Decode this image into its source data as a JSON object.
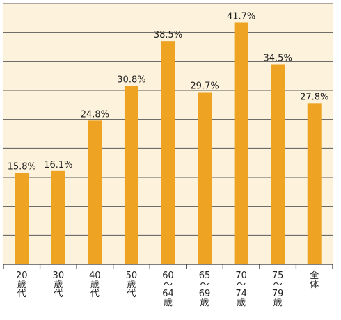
{
  "chart_data": {
    "type": "bar",
    "title": "",
    "xlabel": "",
    "ylabel": "",
    "ylim": [
      0,
      45
    ],
    "gridlines": [
      5,
      10,
      15,
      20,
      25,
      30,
      35,
      40,
      45
    ],
    "grid": true,
    "background_color": "#fdf3dc",
    "bar_color": "#eea322",
    "categories": [
      [
        "20",
        "歳",
        "代"
      ],
      [
        "30",
        "歳",
        "代"
      ],
      [
        "40",
        "歳",
        "代"
      ],
      [
        "50",
        "歳",
        "代"
      ],
      [
        "60",
        "〜",
        "64",
        "歳"
      ],
      [
        "65",
        "〜",
        "69",
        "歳"
      ],
      [
        "70",
        "〜",
        "74",
        "歳"
      ],
      [
        "75",
        "〜",
        "79",
        "歳"
      ],
      [
        "全",
        "体"
      ]
    ],
    "values": [
      15.8,
      16.1,
      24.8,
      30.8,
      38.5,
      29.7,
      41.7,
      34.5,
      27.8
    ],
    "value_labels": [
      "15.8%",
      "16.1%",
      "24.8%",
      "30.8%",
      "38.5%",
      "29.7%",
      "41.7%",
      "34.5%",
      "27.8%"
    ]
  }
}
